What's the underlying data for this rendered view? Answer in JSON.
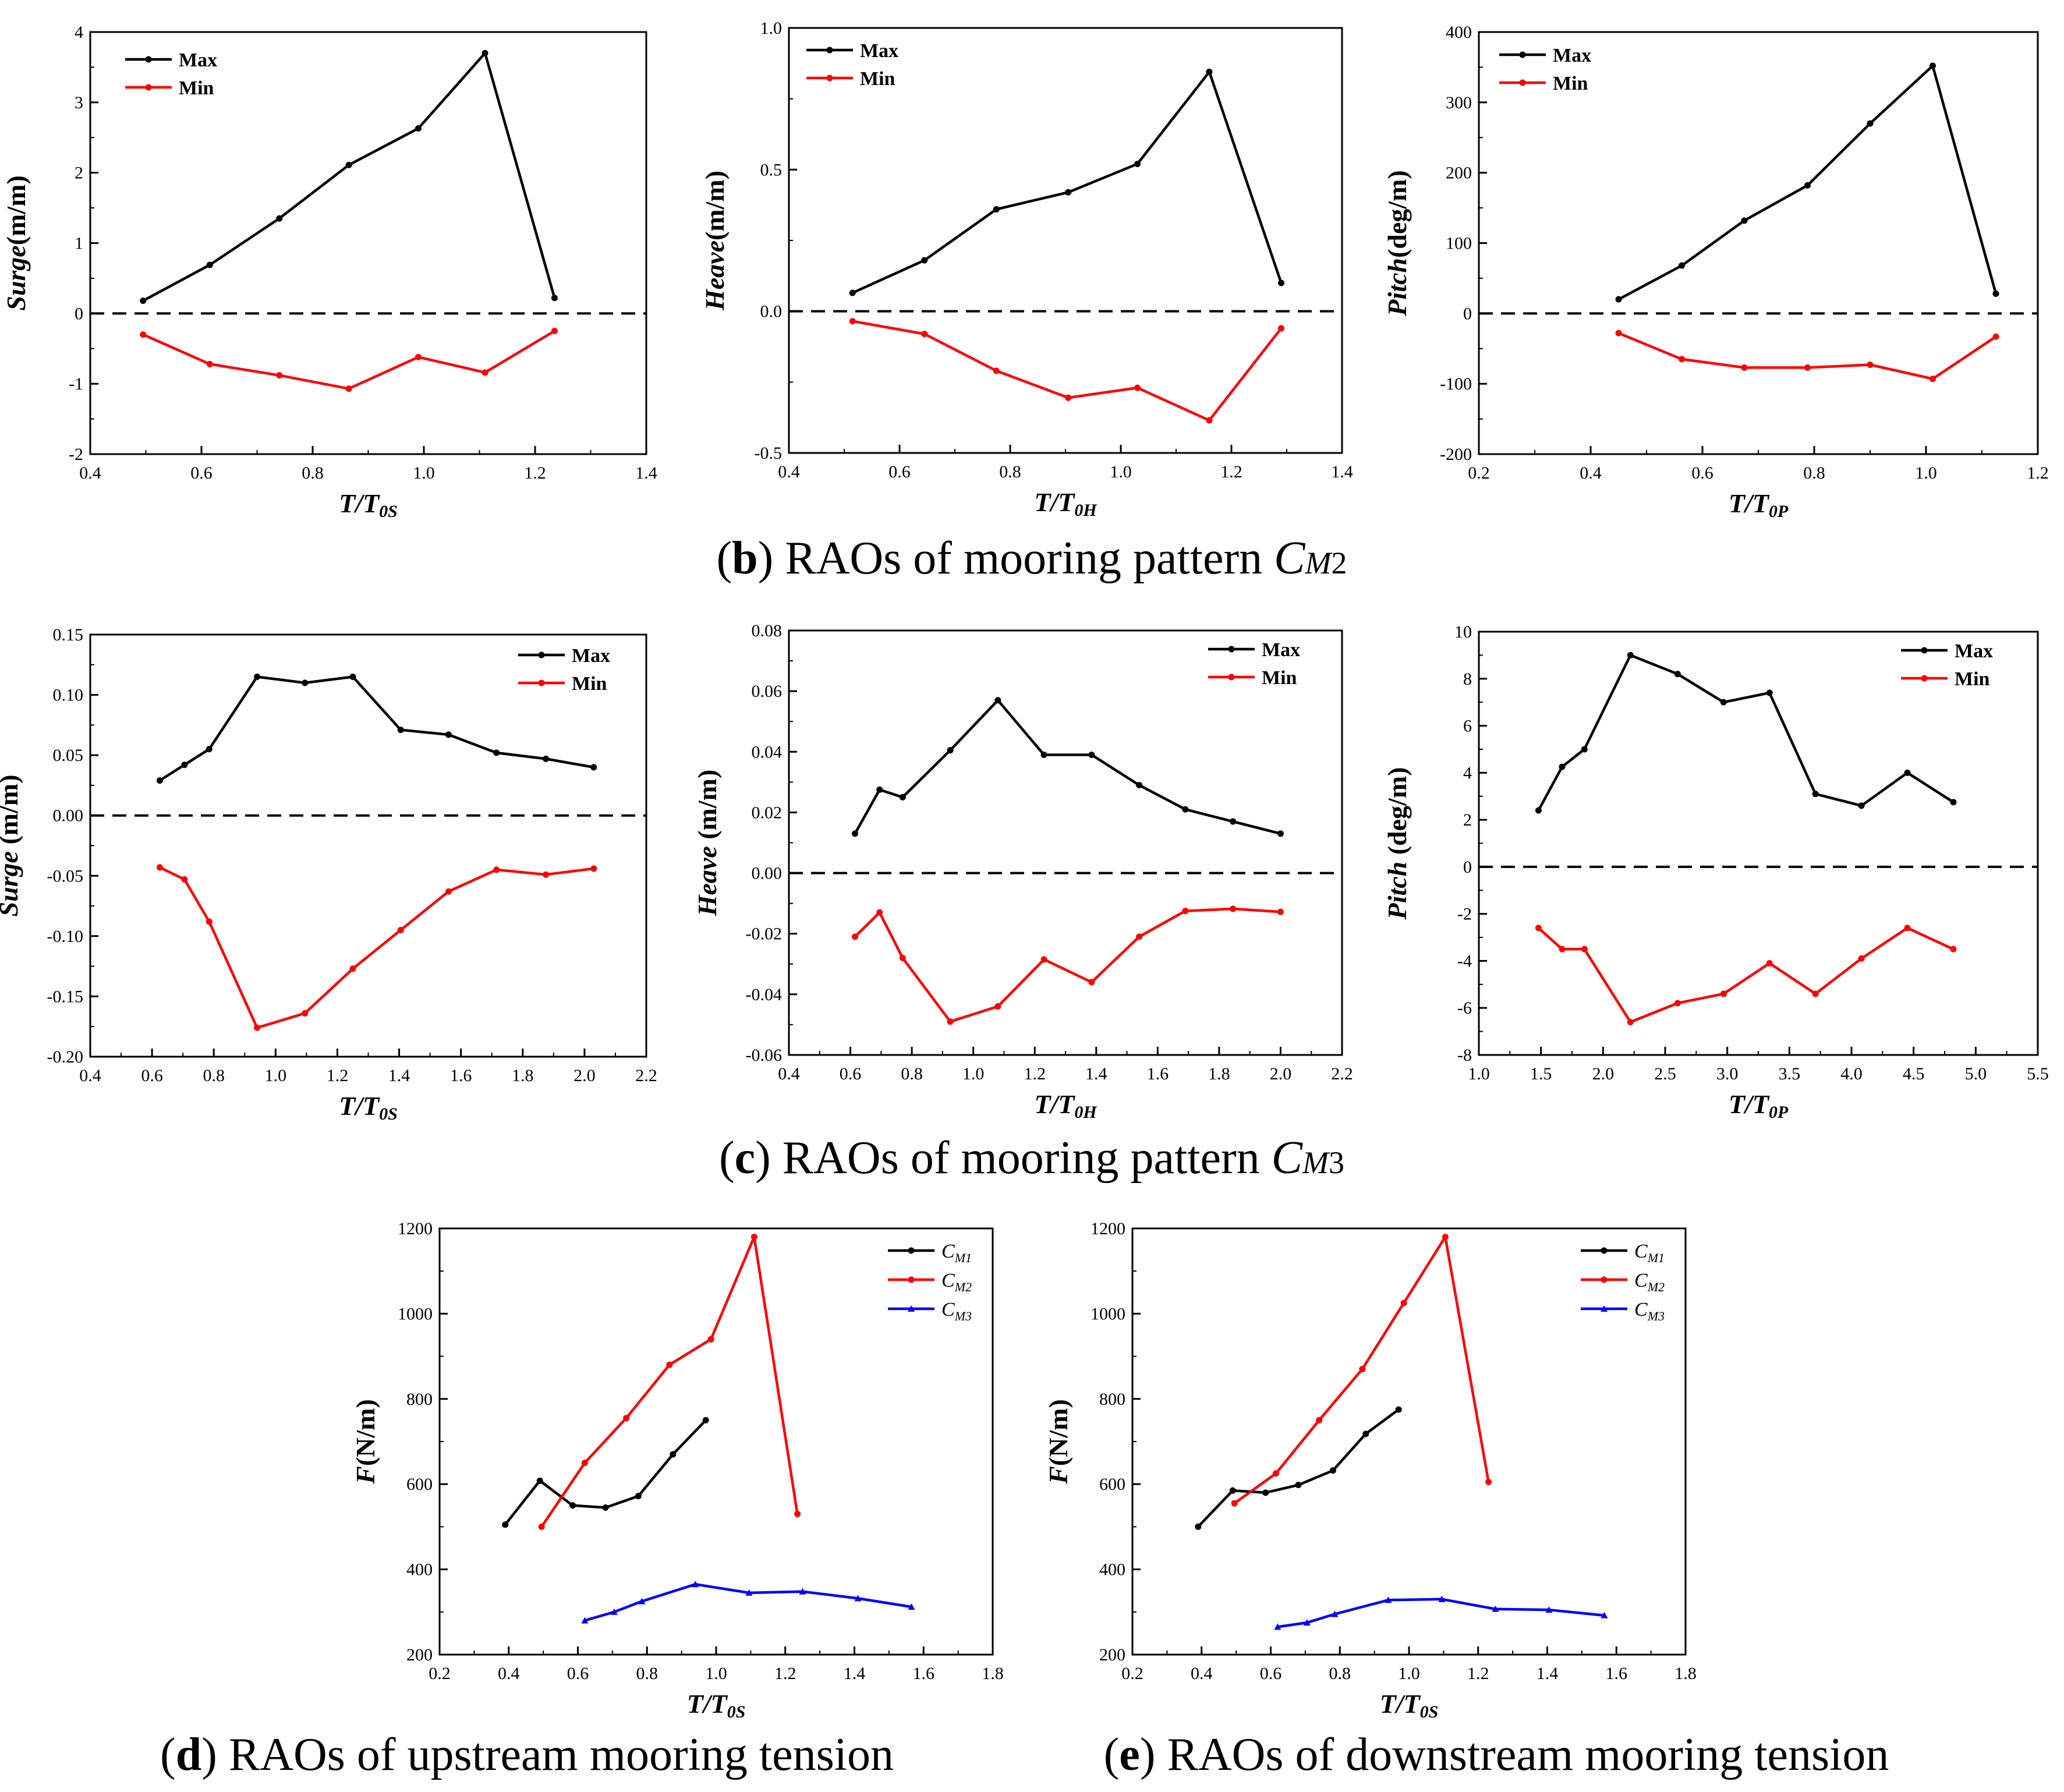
{
  "chart_data": [
    {
      "id": "b1",
      "type": "line",
      "xlabel": {
        "main": "T/T",
        "sub": "0S"
      },
      "ylabel": {
        "main": "Surge",
        "unit": "(m/m)"
      },
      "xlim": [
        0.4,
        1.4
      ],
      "ylim": [
        -2,
        4
      ],
      "xticks": [
        "0.4",
        "0.6",
        "0.8",
        "1.0",
        "1.2",
        "1.4"
      ],
      "yticks": [
        "-2",
        "-1",
        "0",
        "1",
        "2",
        "3",
        "4"
      ],
      "zero_line": true,
      "legend": [
        {
          "label": "Max"
        },
        {
          "label": "Min"
        }
      ],
      "series": [
        {
          "name": "Max",
          "color": "#000000",
          "x": [
            0.495,
            0.615,
            0.74,
            0.865,
            0.99,
            1.11,
            1.235
          ],
          "y": [
            0.18,
            0.69,
            1.35,
            2.11,
            2.63,
            3.7,
            0.22
          ]
        },
        {
          "name": "Min",
          "color": "#ff0000",
          "x": [
            0.495,
            0.615,
            0.74,
            0.865,
            0.99,
            1.11,
            1.235
          ],
          "y": [
            -0.3,
            -0.72,
            -0.88,
            -1.07,
            -0.62,
            -0.84,
            -0.25
          ]
        }
      ]
    },
    {
      "id": "b2",
      "type": "line",
      "xlabel": {
        "main": "T/T",
        "sub": "0H"
      },
      "ylabel": {
        "main": "Heave",
        "unit": "(m/m)"
      },
      "xlim": [
        0.4,
        1.4
      ],
      "ylim": [
        -0.5,
        1.0
      ],
      "xticks": [
        "0.4",
        "0.6",
        "0.8",
        "1.0",
        "1.2",
        "1.4"
      ],
      "yticks": [
        "-0.5",
        "0.0",
        "0.5",
        "1.0"
      ],
      "zero_line": true,
      "legend": [
        {
          "label": "Max"
        },
        {
          "label": "Min"
        }
      ],
      "series": [
        {
          "name": "Max",
          "color": "#000000",
          "x": [
            0.515,
            0.645,
            0.775,
            0.905,
            1.03,
            1.16,
            1.29
          ],
          "y": [
            0.065,
            0.18,
            0.36,
            0.42,
            0.52,
            0.845,
            0.1
          ]
        },
        {
          "name": "Min",
          "color": "#ff0000",
          "x": [
            0.515,
            0.645,
            0.775,
            0.905,
            1.03,
            1.16,
            1.29
          ],
          "y": [
            -0.035,
            -0.08,
            -0.21,
            -0.305,
            -0.27,
            -0.385,
            -0.06
          ]
        }
      ]
    },
    {
      "id": "b3",
      "type": "line",
      "xlabel": {
        "main": "T/T",
        "sub": "0P"
      },
      "ylabel": {
        "main": "Pitch",
        "unit": "(deg/m)"
      },
      "xlim": [
        0.2,
        1.2
      ],
      "ylim": [
        -200,
        400
      ],
      "xticks": [
        "0.2",
        "0.4",
        "0.6",
        "0.8",
        "1.0",
        "1.2"
      ],
      "yticks": [
        "-200",
        "-100",
        "0",
        "100",
        "200",
        "300",
        "400"
      ],
      "zero_line": true,
      "legend": [
        {
          "label": "Max"
        },
        {
          "label": "Min"
        }
      ],
      "series": [
        {
          "name": "Max",
          "color": "#000000",
          "x": [
            0.45,
            0.563,
            0.675,
            0.788,
            0.9,
            1.012,
            1.125
          ],
          "y": [
            20,
            68,
            132,
            182,
            270,
            352,
            28
          ]
        },
        {
          "name": "Min",
          "color": "#ff0000",
          "x": [
            0.45,
            0.563,
            0.675,
            0.788,
            0.9,
            1.012,
            1.125
          ],
          "y": [
            -28,
            -65,
            -77,
            -77,
            -73,
            -93,
            -33
          ]
        }
      ]
    },
    {
      "id": "c1",
      "type": "line",
      "xlabel": {
        "main": "T/T",
        "sub": "0S"
      },
      "ylabel": {
        "main": "Surge",
        "unit": " (m/m)"
      },
      "xlim": [
        0.4,
        2.2
      ],
      "ylim": [
        -0.2,
        0.15
      ],
      "xticks": [
        "0.4",
        "0.6",
        "0.8",
        "1.0",
        "1.2",
        "1.4",
        "1.6",
        "1.8",
        "2.0",
        "2.2"
      ],
      "yticks": [
        "-0.20",
        "-0.15",
        "-0.10",
        "-0.05",
        "0.00",
        "0.05",
        "0.10",
        "0.15"
      ],
      "zero_line": true,
      "legend": [
        {
          "label": "Max"
        },
        {
          "label": "Min"
        }
      ],
      "series": [
        {
          "name": "Max",
          "color": "#000000",
          "x": [
            0.625,
            0.705,
            0.785,
            0.94,
            1.095,
            1.25,
            1.405,
            1.56,
            1.715,
            1.875,
            2.03
          ],
          "y": [
            0.029,
            0.042,
            0.055,
            0.115,
            0.11,
            0.115,
            0.071,
            0.067,
            0.052,
            0.047,
            0.04
          ]
        },
        {
          "name": "Min",
          "color": "#ff0000",
          "x": [
            0.625,
            0.705,
            0.785,
            0.94,
            1.095,
            1.25,
            1.405,
            1.56,
            1.715,
            1.875,
            2.03
          ],
          "y": [
            -0.043,
            -0.053,
            -0.088,
            -0.176,
            -0.164,
            -0.127,
            -0.095,
            -0.063,
            -0.045,
            -0.049,
            -0.044
          ]
        }
      ]
    },
    {
      "id": "c2",
      "type": "line",
      "xlabel": {
        "main": "T/T",
        "sub": "0H"
      },
      "ylabel": {
        "main": "Heave",
        "unit": " (m/m)"
      },
      "xlim": [
        0.4,
        2.2
      ],
      "ylim": [
        -0.06,
        0.08
      ],
      "xticks": [
        "0.4",
        "0.6",
        "0.8",
        "1.0",
        "1.2",
        "1.4",
        "1.6",
        "1.8",
        "2.0",
        "2.2"
      ],
      "yticks": [
        "-0.06",
        "-0.04",
        "-0.02",
        "0.00",
        "0.02",
        "0.04",
        "0.06",
        "0.08"
      ],
      "zero_line": true,
      "legend": [
        {
          "label": "Max"
        },
        {
          "label": "Min"
        }
      ],
      "series": [
        {
          "name": "Max",
          "color": "#000000",
          "x": [
            0.615,
            0.695,
            0.77,
            0.925,
            1.08,
            1.23,
            1.385,
            1.54,
            1.69,
            1.845,
            2.0
          ],
          "y": [
            0.013,
            0.0275,
            0.025,
            0.0405,
            0.057,
            0.039,
            0.039,
            0.029,
            0.021,
            0.017,
            0.013
          ]
        },
        {
          "name": "Min",
          "color": "#ff0000",
          "x": [
            0.615,
            0.695,
            0.77,
            0.925,
            1.08,
            1.23,
            1.385,
            1.54,
            1.69,
            1.845,
            2.0
          ],
          "y": [
            -0.021,
            -0.013,
            -0.028,
            -0.049,
            -0.044,
            -0.0285,
            -0.036,
            -0.021,
            -0.0125,
            -0.0118,
            -0.0128
          ]
        }
      ]
    },
    {
      "id": "c3",
      "type": "line",
      "xlabel": {
        "main": "T/T",
        "sub": "0P"
      },
      "ylabel": {
        "main": "Pitch",
        "unit": " (deg/m)"
      },
      "xlim": [
        1.0,
        5.5
      ],
      "ylim": [
        -8,
        10
      ],
      "xticks": [
        "1.0",
        "1.5",
        "2.0",
        "2.5",
        "3.0",
        "3.5",
        "4.0",
        "4.5",
        "5.0",
        "5.5"
      ],
      "yticks": [
        "-8",
        "-6",
        "-4",
        "-2",
        "0",
        "2",
        "4",
        "6",
        "8",
        "10"
      ],
      "zero_line": true,
      "legend": [
        {
          "label": "Max"
        },
        {
          "label": "Min"
        }
      ],
      "series": [
        {
          "name": "Max",
          "color": "#000000",
          "x": [
            1.48,
            1.67,
            1.85,
            2.22,
            2.6,
            2.97,
            3.34,
            3.71,
            4.08,
            4.45,
            4.82
          ],
          "y": [
            2.4,
            4.25,
            5.0,
            9.0,
            8.2,
            7.0,
            7.4,
            3.1,
            2.6,
            4.0,
            2.75
          ]
        },
        {
          "name": "Min",
          "color": "#ff0000",
          "x": [
            1.48,
            1.67,
            1.85,
            2.22,
            2.6,
            2.97,
            3.34,
            3.71,
            4.08,
            4.45,
            4.82
          ],
          "y": [
            -2.6,
            -3.5,
            -3.5,
            -6.6,
            -5.8,
            -5.4,
            -4.1,
            -5.4,
            -3.9,
            -2.6,
            -3.5
          ]
        }
      ]
    },
    {
      "id": "d",
      "type": "line",
      "xlabel": {
        "main": "T/T",
        "sub": "0S"
      },
      "ylabel": {
        "main": "F",
        "unit": "(N/m)"
      },
      "xlim": [
        0.2,
        1.8
      ],
      "ylim": [
        200,
        1200
      ],
      "xticks": [
        "0.2",
        "0.4",
        "0.6",
        "0.8",
        "1.0",
        "1.2",
        "1.4",
        "1.6",
        "1.8"
      ],
      "yticks": [
        "200",
        "400",
        "600",
        "800",
        "1000",
        "1200"
      ],
      "zero_line": false,
      "legend": [
        {
          "label": "C",
          "sub": "M1"
        },
        {
          "label": "C",
          "sub": "M2"
        },
        {
          "label": "C",
          "sub": "M3"
        }
      ],
      "series": [
        {
          "name": "CM1",
          "color": "#000000",
          "x": [
            0.39,
            0.49,
            0.585,
            0.68,
            0.775,
            0.875,
            0.97
          ],
          "y": [
            505,
            608,
            550,
            545,
            572,
            670,
            750
          ]
        },
        {
          "name": "CM2",
          "color": "#ff0000",
          "x": [
            0.495,
            0.62,
            0.74,
            0.865,
            0.985,
            1.11,
            1.235
          ],
          "y": [
            500,
            650,
            755,
            880,
            940,
            1180,
            530
          ]
        },
        {
          "name": "CM3",
          "color": "#0000ff",
          "x": [
            0.62,
            0.705,
            0.785,
            0.94,
            1.095,
            1.25,
            1.41,
            1.565
          ],
          "y": [
            280,
            300,
            325,
            365,
            345,
            348,
            332,
            312
          ]
        }
      ]
    },
    {
      "id": "e",
      "type": "line",
      "xlabel": {
        "main": "T/T",
        "sub": "0S"
      },
      "ylabel": {
        "main": "F",
        "unit": "(N/m)"
      },
      "xlim": [
        0.2,
        1.8
      ],
      "ylim": [
        200,
        1200
      ],
      "xticks": [
        "0.2",
        "0.4",
        "0.6",
        "0.8",
        "1.0",
        "1.2",
        "1.4",
        "1.6",
        "1.8"
      ],
      "yticks": [
        "200",
        "400",
        "600",
        "800",
        "1000",
        "1200"
      ],
      "zero_line": false,
      "legend": [
        {
          "label": "C",
          "sub": "M1"
        },
        {
          "label": "C",
          "sub": "M2"
        },
        {
          "label": "C",
          "sub": "M3"
        }
      ],
      "series": [
        {
          "name": "CM1",
          "color": "#000000",
          "x": [
            0.39,
            0.49,
            0.585,
            0.68,
            0.78,
            0.875,
            0.97
          ],
          "y": [
            500,
            585,
            580,
            598,
            632,
            718,
            775
          ]
        },
        {
          "name": "CM2",
          "color": "#ff0000",
          "x": [
            0.495,
            0.615,
            0.74,
            0.865,
            0.985,
            1.105,
            1.23
          ],
          "y": [
            555,
            625,
            750,
            870,
            1025,
            1180,
            605
          ]
        },
        {
          "name": "CM3",
          "color": "#0000ff",
          "x": [
            0.62,
            0.705,
            0.785,
            0.94,
            1.095,
            1.25,
            1.405,
            1.565
          ],
          "y": [
            265,
            275,
            295,
            328,
            330,
            307,
            305,
            292
          ]
        }
      ]
    }
  ],
  "captions": {
    "b": {
      "letter": "b",
      "text": " RAOs of mooring pattern ",
      "sym": "C",
      "sub": "M",
      "num": "2"
    },
    "c": {
      "letter": "c",
      "text": " RAOs of mooring pattern ",
      "sym": "C",
      "sub": "M",
      "num": "3"
    },
    "d": {
      "letter": "d",
      "text": " RAOs of upstream mooring tension"
    },
    "e": {
      "letter": "e",
      "text": " RAOs of downstream mooring tension"
    }
  }
}
